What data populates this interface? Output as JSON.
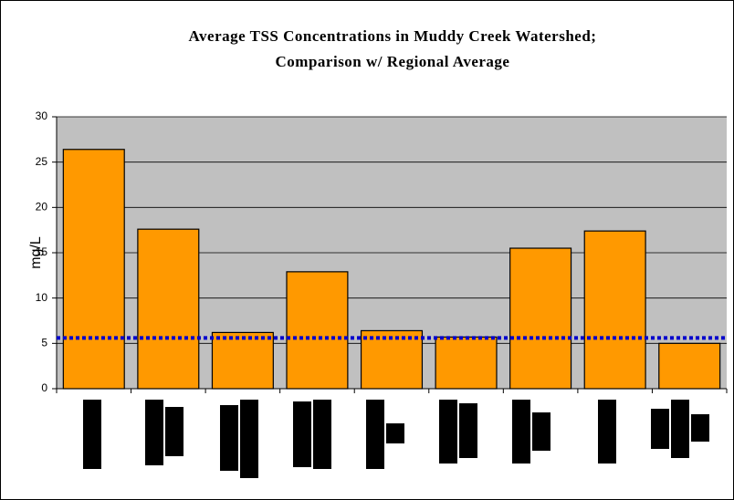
{
  "chart_data": {
    "type": "bar",
    "title": [
      "Average TSS Concentrations in Muddy Creek Watershed;",
      "Comparison w/ Regional Average"
    ],
    "y_label": "mg/L",
    "categories": [
      null,
      null,
      null,
      null,
      null,
      null,
      null,
      null,
      null
    ],
    "values": [
      26.4,
      17.6,
      6.2,
      12.9,
      6.4,
      5.7,
      15.5,
      17.4,
      5.0
    ],
    "color": "#ff9900",
    "reference_line": {
      "value": 5.6,
      "color": "#0000cc"
    },
    "ylim": [
      0,
      30
    ],
    "yticks": [
      0,
      5,
      10,
      15,
      20,
      25,
      30
    ],
    "grid": true,
    "plot_background": "#c0c0c0"
  }
}
